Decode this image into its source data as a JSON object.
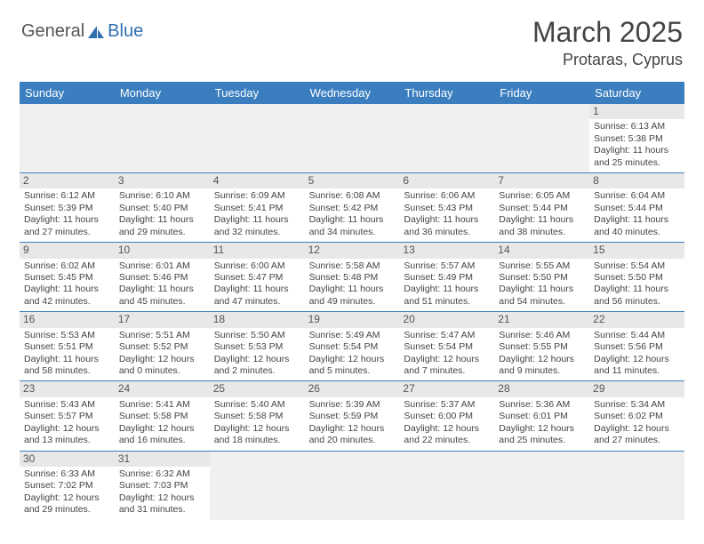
{
  "colors": {
    "header_blue": "#3a7ebf",
    "logo_blue": "#2f6fb0",
    "title_color": "#444444",
    "daynum_bg": "#e8e8e8",
    "empty_bg": "#f0f0f0",
    "row_border": "#3a7ebf"
  },
  "logo": {
    "general": "General",
    "blue": "Blue"
  },
  "title": "March 2025",
  "location": "Protaras, Cyprus",
  "day_headers": [
    "Sunday",
    "Monday",
    "Tuesday",
    "Wednesday",
    "Thursday",
    "Friday",
    "Saturday"
  ],
  "weeks": [
    [
      null,
      null,
      null,
      null,
      null,
      null,
      {
        "n": "1",
        "sunrise": "Sunrise: 6:13 AM",
        "sunset": "Sunset: 5:38 PM",
        "daylight": "Daylight: 11 hours and 25 minutes."
      }
    ],
    [
      {
        "n": "2",
        "sunrise": "Sunrise: 6:12 AM",
        "sunset": "Sunset: 5:39 PM",
        "daylight": "Daylight: 11 hours and 27 minutes."
      },
      {
        "n": "3",
        "sunrise": "Sunrise: 6:10 AM",
        "sunset": "Sunset: 5:40 PM",
        "daylight": "Daylight: 11 hours and 29 minutes."
      },
      {
        "n": "4",
        "sunrise": "Sunrise: 6:09 AM",
        "sunset": "Sunset: 5:41 PM",
        "daylight": "Daylight: 11 hours and 32 minutes."
      },
      {
        "n": "5",
        "sunrise": "Sunrise: 6:08 AM",
        "sunset": "Sunset: 5:42 PM",
        "daylight": "Daylight: 11 hours and 34 minutes."
      },
      {
        "n": "6",
        "sunrise": "Sunrise: 6:06 AM",
        "sunset": "Sunset: 5:43 PM",
        "daylight": "Daylight: 11 hours and 36 minutes."
      },
      {
        "n": "7",
        "sunrise": "Sunrise: 6:05 AM",
        "sunset": "Sunset: 5:44 PM",
        "daylight": "Daylight: 11 hours and 38 minutes."
      },
      {
        "n": "8",
        "sunrise": "Sunrise: 6:04 AM",
        "sunset": "Sunset: 5:44 PM",
        "daylight": "Daylight: 11 hours and 40 minutes."
      }
    ],
    [
      {
        "n": "9",
        "sunrise": "Sunrise: 6:02 AM",
        "sunset": "Sunset: 5:45 PM",
        "daylight": "Daylight: 11 hours and 42 minutes."
      },
      {
        "n": "10",
        "sunrise": "Sunrise: 6:01 AM",
        "sunset": "Sunset: 5:46 PM",
        "daylight": "Daylight: 11 hours and 45 minutes."
      },
      {
        "n": "11",
        "sunrise": "Sunrise: 6:00 AM",
        "sunset": "Sunset: 5:47 PM",
        "daylight": "Daylight: 11 hours and 47 minutes."
      },
      {
        "n": "12",
        "sunrise": "Sunrise: 5:58 AM",
        "sunset": "Sunset: 5:48 PM",
        "daylight": "Daylight: 11 hours and 49 minutes."
      },
      {
        "n": "13",
        "sunrise": "Sunrise: 5:57 AM",
        "sunset": "Sunset: 5:49 PM",
        "daylight": "Daylight: 11 hours and 51 minutes."
      },
      {
        "n": "14",
        "sunrise": "Sunrise: 5:55 AM",
        "sunset": "Sunset: 5:50 PM",
        "daylight": "Daylight: 11 hours and 54 minutes."
      },
      {
        "n": "15",
        "sunrise": "Sunrise: 5:54 AM",
        "sunset": "Sunset: 5:50 PM",
        "daylight": "Daylight: 11 hours and 56 minutes."
      }
    ],
    [
      {
        "n": "16",
        "sunrise": "Sunrise: 5:53 AM",
        "sunset": "Sunset: 5:51 PM",
        "daylight": "Daylight: 11 hours and 58 minutes."
      },
      {
        "n": "17",
        "sunrise": "Sunrise: 5:51 AM",
        "sunset": "Sunset: 5:52 PM",
        "daylight": "Daylight: 12 hours and 0 minutes."
      },
      {
        "n": "18",
        "sunrise": "Sunrise: 5:50 AM",
        "sunset": "Sunset: 5:53 PM",
        "daylight": "Daylight: 12 hours and 2 minutes."
      },
      {
        "n": "19",
        "sunrise": "Sunrise: 5:49 AM",
        "sunset": "Sunset: 5:54 PM",
        "daylight": "Daylight: 12 hours and 5 minutes."
      },
      {
        "n": "20",
        "sunrise": "Sunrise: 5:47 AM",
        "sunset": "Sunset: 5:54 PM",
        "daylight": "Daylight: 12 hours and 7 minutes."
      },
      {
        "n": "21",
        "sunrise": "Sunrise: 5:46 AM",
        "sunset": "Sunset: 5:55 PM",
        "daylight": "Daylight: 12 hours and 9 minutes."
      },
      {
        "n": "22",
        "sunrise": "Sunrise: 5:44 AM",
        "sunset": "Sunset: 5:56 PM",
        "daylight": "Daylight: 12 hours and 11 minutes."
      }
    ],
    [
      {
        "n": "23",
        "sunrise": "Sunrise: 5:43 AM",
        "sunset": "Sunset: 5:57 PM",
        "daylight": "Daylight: 12 hours and 13 minutes."
      },
      {
        "n": "24",
        "sunrise": "Sunrise: 5:41 AM",
        "sunset": "Sunset: 5:58 PM",
        "daylight": "Daylight: 12 hours and 16 minutes."
      },
      {
        "n": "25",
        "sunrise": "Sunrise: 5:40 AM",
        "sunset": "Sunset: 5:58 PM",
        "daylight": "Daylight: 12 hours and 18 minutes."
      },
      {
        "n": "26",
        "sunrise": "Sunrise: 5:39 AM",
        "sunset": "Sunset: 5:59 PM",
        "daylight": "Daylight: 12 hours and 20 minutes."
      },
      {
        "n": "27",
        "sunrise": "Sunrise: 5:37 AM",
        "sunset": "Sunset: 6:00 PM",
        "daylight": "Daylight: 12 hours and 22 minutes."
      },
      {
        "n": "28",
        "sunrise": "Sunrise: 5:36 AM",
        "sunset": "Sunset: 6:01 PM",
        "daylight": "Daylight: 12 hours and 25 minutes."
      },
      {
        "n": "29",
        "sunrise": "Sunrise: 5:34 AM",
        "sunset": "Sunset: 6:02 PM",
        "daylight": "Daylight: 12 hours and 27 minutes."
      }
    ],
    [
      {
        "n": "30",
        "sunrise": "Sunrise: 6:33 AM",
        "sunset": "Sunset: 7:02 PM",
        "daylight": "Daylight: 12 hours and 29 minutes."
      },
      {
        "n": "31",
        "sunrise": "Sunrise: 6:32 AM",
        "sunset": "Sunset: 7:03 PM",
        "daylight": "Daylight: 12 hours and 31 minutes."
      },
      null,
      null,
      null,
      null,
      null
    ]
  ]
}
